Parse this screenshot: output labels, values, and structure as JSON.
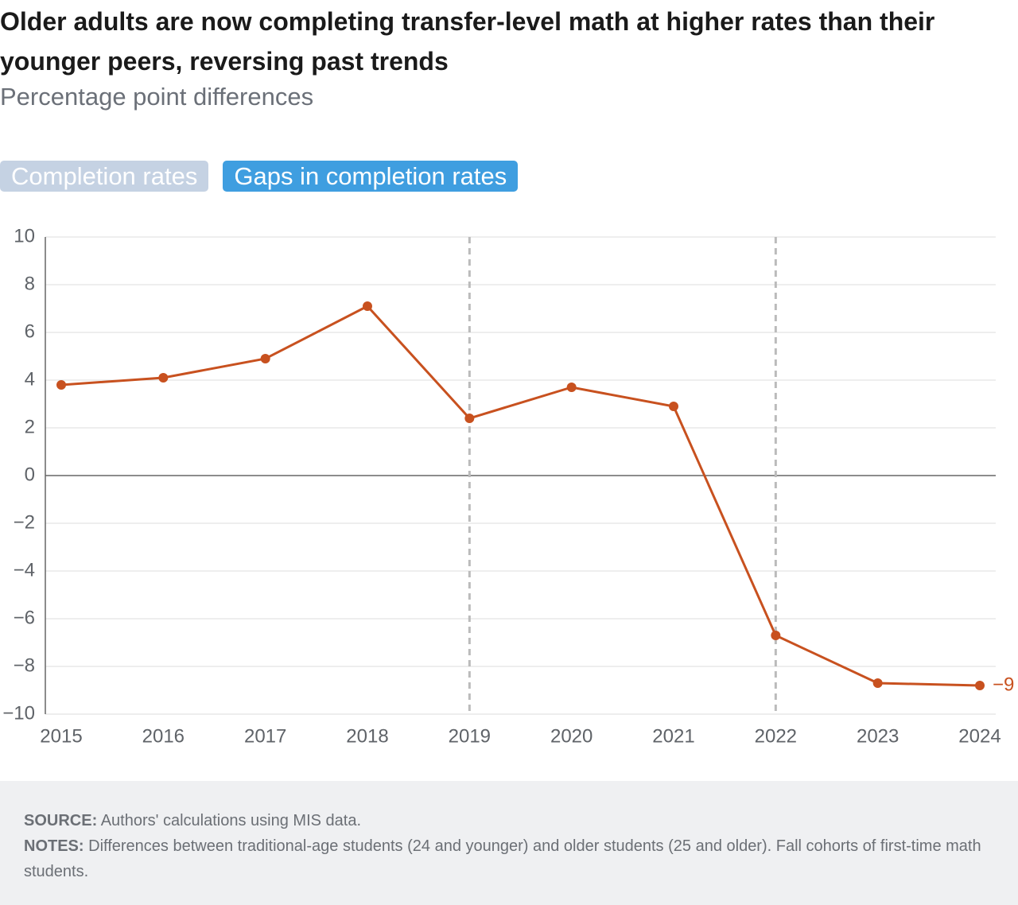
{
  "chart_data": {
    "type": "line",
    "title": "Older adults are now completing transfer-level math at higher rates than their younger peers, reversing past trends",
    "subtitle": "Percentage point differences",
    "categories": [
      "2015",
      "2016",
      "2017",
      "2018",
      "2019",
      "2020",
      "2021",
      "2022",
      "2023",
      "2024"
    ],
    "values": [
      3.8,
      4.1,
      4.9,
      7.1,
      2.4,
      3.7,
      2.9,
      -6.7,
      -8.7,
      -8.8
    ],
    "value_labels": [
      null,
      null,
      null,
      null,
      null,
      null,
      null,
      null,
      null,
      "−9"
    ],
    "color": "#c8511f",
    "ylim": [
      -10,
      10
    ],
    "yticks": [
      {
        "value": -10,
        "label": "−10"
      },
      {
        "value": -8,
        "label": "−8"
      },
      {
        "value": -6,
        "label": "−6"
      },
      {
        "value": -4,
        "label": "−4"
      },
      {
        "value": -2,
        "label": "−2"
      },
      0,
      2,
      4,
      6,
      8,
      10
    ],
    "grid": true,
    "vlines": [
      "2019",
      "2022"
    ]
  },
  "tabs": [
    "Completion rates",
    "Gaps in completion rates"
  ],
  "active_tab": 1,
  "footer": {
    "source_label": "SOURCE:",
    "source": "Authors' calculations using MIS data.",
    "notes_label": "NOTES:",
    "notes": "Differences between traditional-age students (24 and younger) and older students (25 and older). Fall cohorts of first-time math students."
  }
}
